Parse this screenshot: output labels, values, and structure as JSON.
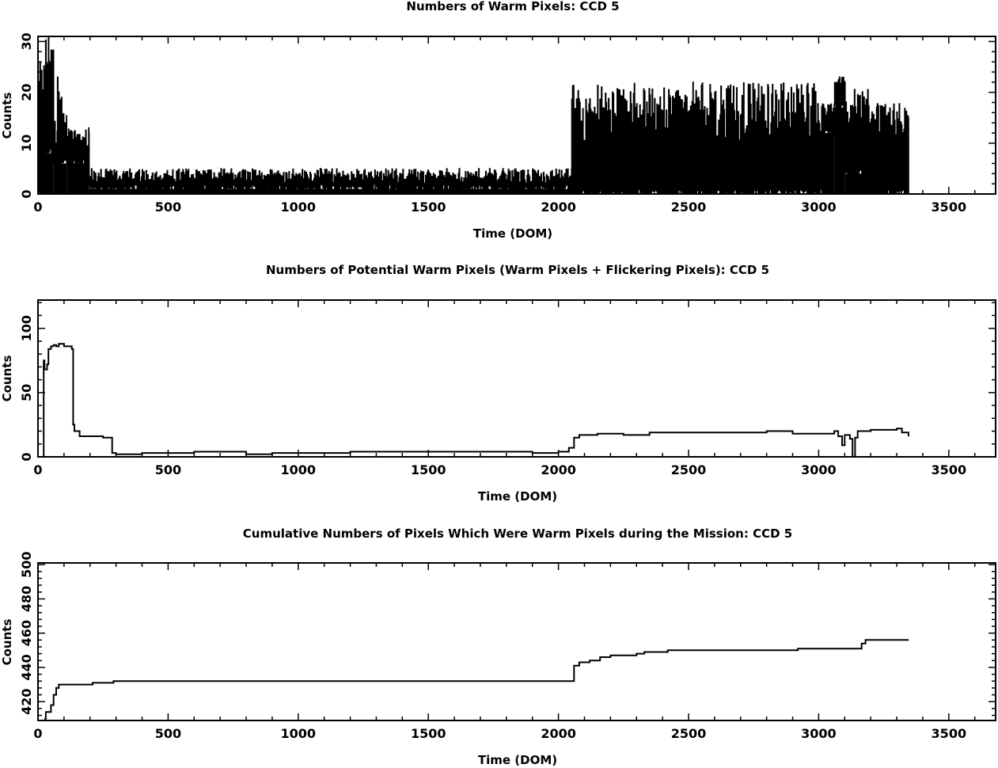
{
  "chart_data": [
    {
      "type": "line",
      "title": "Numbers of Warm Pixels: CCD 5",
      "xlabel": "Time (DOM)",
      "ylabel": "Counts",
      "xlim": [
        0,
        3680
      ],
      "ylim": [
        0,
        31
      ],
      "xticks": [
        0,
        500,
        1000,
        1500,
        2000,
        2500,
        3000,
        3500
      ],
      "yticks": [
        0,
        10,
        20,
        30
      ],
      "render": "spikes",
      "segments": [
        {
          "x0": 0,
          "x1": 25,
          "base": 0,
          "hi": [
            10,
            28
          ],
          "step": 3
        },
        {
          "x0": 25,
          "x1": 60,
          "base": 8,
          "hi": [
            22,
            31
          ],
          "step": 3
        },
        {
          "x0": 60,
          "x1": 110,
          "base": 6,
          "hi": [
            8,
            23
          ],
          "step": 3
        },
        {
          "x0": 110,
          "x1": 195,
          "base": 6,
          "hi": [
            9,
            13
          ],
          "step": 3
        },
        {
          "x0": 195,
          "x1": 2050,
          "base": 1,
          "hi": [
            2,
            5
          ],
          "step": 3
        },
        {
          "x0": 2050,
          "x1": 3010,
          "base": 0,
          "hi": [
            10,
            22
          ],
          "step": 3
        },
        {
          "x0": 3010,
          "x1": 3060,
          "base": 12,
          "hi": [
            15,
            18
          ],
          "step": 3
        },
        {
          "x0": 3060,
          "x1": 3100,
          "base": 17,
          "hi": [
            21,
            23
          ],
          "step": 3
        },
        {
          "x0": 3100,
          "x1": 3200,
          "base": 4,
          "hi": [
            10,
            21
          ],
          "step": 3
        },
        {
          "x0": 3200,
          "x1": 3345,
          "base": 0,
          "hi": [
            10,
            18
          ],
          "step": 3
        }
      ],
      "key_points": [
        [
          40,
          31
        ],
        [
          75,
          23
        ],
        [
          90,
          19
        ],
        [
          195,
          13
        ],
        [
          2517,
          22
        ],
        [
          2807,
          21
        ],
        [
          3080,
          23
        ],
        [
          3345,
          0
        ]
      ]
    },
    {
      "type": "line",
      "title": "Numbers of Potential Warm Pixels (Warm Pixels + Flickering Pixels): CCD 5",
      "xlabel": "Time (DOM)",
      "ylabel": "Counts",
      "xlim": [
        0,
        3680
      ],
      "ylim": [
        0,
        122
      ],
      "xticks": [
        0,
        500,
        1000,
        1500,
        2000,
        2500,
        3000,
        3500
      ],
      "yticks": [
        0,
        50,
        100
      ],
      "points": [
        [
          20,
          0
        ],
        [
          22,
          75
        ],
        [
          25,
          68
        ],
        [
          35,
          72
        ],
        [
          40,
          84
        ],
        [
          50,
          86
        ],
        [
          60,
          87
        ],
        [
          70,
          86
        ],
        [
          80,
          88
        ],
        [
          100,
          86
        ],
        [
          130,
          84
        ],
        [
          135,
          25
        ],
        [
          140,
          20
        ],
        [
          160,
          16
        ],
        [
          200,
          16
        ],
        [
          250,
          15
        ],
        [
          280,
          15
        ],
        [
          285,
          3
        ],
        [
          300,
          2
        ],
        [
          400,
          3
        ],
        [
          500,
          3
        ],
        [
          600,
          4
        ],
        [
          700,
          4
        ],
        [
          800,
          2
        ],
        [
          900,
          3
        ],
        [
          1000,
          3
        ],
        [
          1200,
          4
        ],
        [
          1500,
          4
        ],
        [
          1700,
          4
        ],
        [
          1900,
          3
        ],
        [
          2000,
          4
        ],
        [
          2040,
          7
        ],
        [
          2060,
          15
        ],
        [
          2080,
          17
        ],
        [
          2150,
          18
        ],
        [
          2250,
          17
        ],
        [
          2350,
          19
        ],
        [
          2500,
          19
        ],
        [
          2650,
          19
        ],
        [
          2800,
          20
        ],
        [
          2900,
          18
        ],
        [
          3000,
          18
        ],
        [
          3060,
          20
        ],
        [
          3075,
          16
        ],
        [
          3090,
          9
        ],
        [
          3100,
          17
        ],
        [
          3120,
          14
        ],
        [
          3130,
          0
        ],
        [
          3140,
          15
        ],
        [
          3150,
          20
        ],
        [
          3200,
          21
        ],
        [
          3300,
          22
        ],
        [
          3320,
          19
        ],
        [
          3345,
          16
        ]
      ]
    },
    {
      "type": "line",
      "title": "Cumulative Numbers of Pixels Which Were Warm Pixels during the Mission: CCD 5",
      "xlabel": "Time (DOM)",
      "ylabel": "Counts",
      "xlim": [
        0,
        3680
      ],
      "ylim": [
        409,
        501
      ],
      "xticks": [
        0,
        500,
        1000,
        1500,
        2000,
        2500,
        3000,
        3500
      ],
      "yticks": [
        420,
        440,
        460,
        480,
        500
      ],
      "points": [
        [
          25,
          410
        ],
        [
          30,
          414
        ],
        [
          50,
          418
        ],
        [
          60,
          424
        ],
        [
          70,
          428
        ],
        [
          80,
          430
        ],
        [
          200,
          430
        ],
        [
          210,
          431
        ],
        [
          280,
          431
        ],
        [
          290,
          432
        ],
        [
          2040,
          432
        ],
        [
          2060,
          441
        ],
        [
          2080,
          443
        ],
        [
          2120,
          444
        ],
        [
          2160,
          446
        ],
        [
          2200,
          447
        ],
        [
          2300,
          448
        ],
        [
          2330,
          449
        ],
        [
          2420,
          450
        ],
        [
          2900,
          450
        ],
        [
          2920,
          451
        ],
        [
          3150,
          451
        ],
        [
          3165,
          454
        ],
        [
          3180,
          456
        ],
        [
          3345,
          456
        ]
      ]
    }
  ]
}
